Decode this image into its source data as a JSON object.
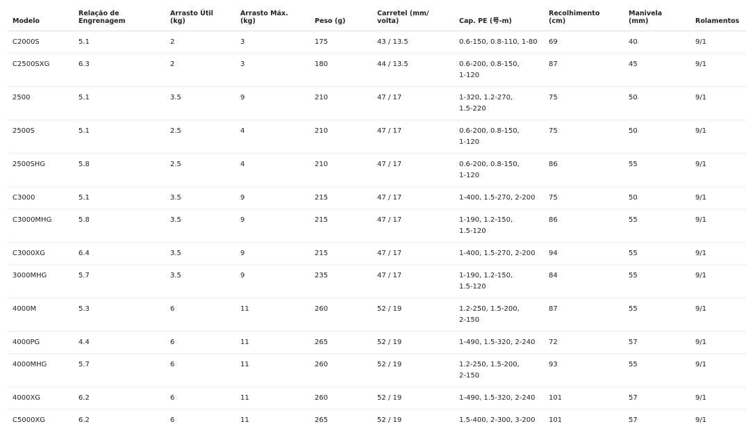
{
  "table": {
    "header": [
      [
        "Modelo"
      ],
      [
        "Relação de",
        "Engrenagem"
      ],
      [
        "Arrasto Útil",
        "(kg)"
      ],
      [
        "Arrasto Máx.",
        "(kg)"
      ],
      [
        "Peso (g)"
      ],
      [
        "Carretel (mm/",
        "volta)"
      ],
      [
        "Cap. PE (号-m)"
      ],
      [
        "Recolhimento",
        "(cm)"
      ],
      [
        "Manivela",
        "(mm)"
      ],
      [
        "Rolamentos"
      ]
    ],
    "rows": [
      [
        "C2000S",
        "5.1",
        "2",
        "3",
        "175",
        "43 / 13.5",
        [
          "0.6-150, 0.8-110, 1-80"
        ],
        "69",
        "40",
        "9/1"
      ],
      [
        "C2500SXG",
        "6.3",
        "2",
        "3",
        "180",
        "44 / 13.5",
        [
          "0.6-200, 0.8-150,",
          "1-120"
        ],
        "87",
        "45",
        "9/1"
      ],
      [
        "2500",
        "5.1",
        "3.5",
        "9",
        "210",
        "47 / 17",
        [
          "1-320, 1.2-270,",
          "1.5-220"
        ],
        "75",
        "50",
        "9/1"
      ],
      [
        "2500S",
        "5.1",
        "2.5",
        "4",
        "210",
        "47 / 17",
        [
          "0.6-200, 0.8-150,",
          "1-120"
        ],
        "75",
        "50",
        "9/1"
      ],
      [
        "2500SHG",
        "5.8",
        "2.5",
        "4",
        "210",
        "47 / 17",
        [
          "0.6-200, 0.8-150,",
          "1-120"
        ],
        "86",
        "55",
        "9/1"
      ],
      [
        "C3000",
        "5.1",
        "3.5",
        "9",
        "215",
        "47 / 17",
        [
          "1-400, 1.5-270, 2-200"
        ],
        "75",
        "50",
        "9/1"
      ],
      [
        "C3000MHG",
        "5.8",
        "3.5",
        "9",
        "215",
        "47 / 17",
        [
          "1-190, 1.2-150,",
          "1.5-120"
        ],
        "86",
        "55",
        "9/1"
      ],
      [
        "C3000XG",
        "6.4",
        "3.5",
        "9",
        "215",
        "47 / 17",
        [
          "1-400, 1.5-270, 2-200"
        ],
        "94",
        "55",
        "9/1"
      ],
      [
        "3000MHG",
        "5.7",
        "3.5",
        "9",
        "235",
        "47 / 17",
        [
          "1-190, 1.2-150,",
          "1.5-120"
        ],
        "84",
        "55",
        "9/1"
      ],
      [
        "4000M",
        "5.3",
        "6",
        "11",
        "260",
        "52 / 19",
        [
          "1.2-250, 1.5-200,",
          "2-150"
        ],
        "87",
        "55",
        "9/1"
      ],
      [
        "4000PG",
        "4.4",
        "6",
        "11",
        "265",
        "52 / 19",
        [
          "1-490, 1.5-320, 2-240"
        ],
        "72",
        "57",
        "9/1"
      ],
      [
        "4000MHG",
        "5.7",
        "6",
        "11",
        "260",
        "52 / 19",
        [
          "1.2-250, 1.5-200,",
          "2-150"
        ],
        "93",
        "55",
        "9/1"
      ],
      [
        "4000XG",
        "6.2",
        "6",
        "11",
        "260",
        "52 / 19",
        [
          "1-490, 1.5-320, 2-240"
        ],
        "101",
        "57",
        "9/1"
      ],
      [
        "C5000XG",
        "6.2",
        "6",
        "11",
        "265",
        "52 / 19",
        [
          "1.5-400, 2-300, 3-200"
        ],
        "101",
        "57",
        "9/1"
      ]
    ]
  }
}
